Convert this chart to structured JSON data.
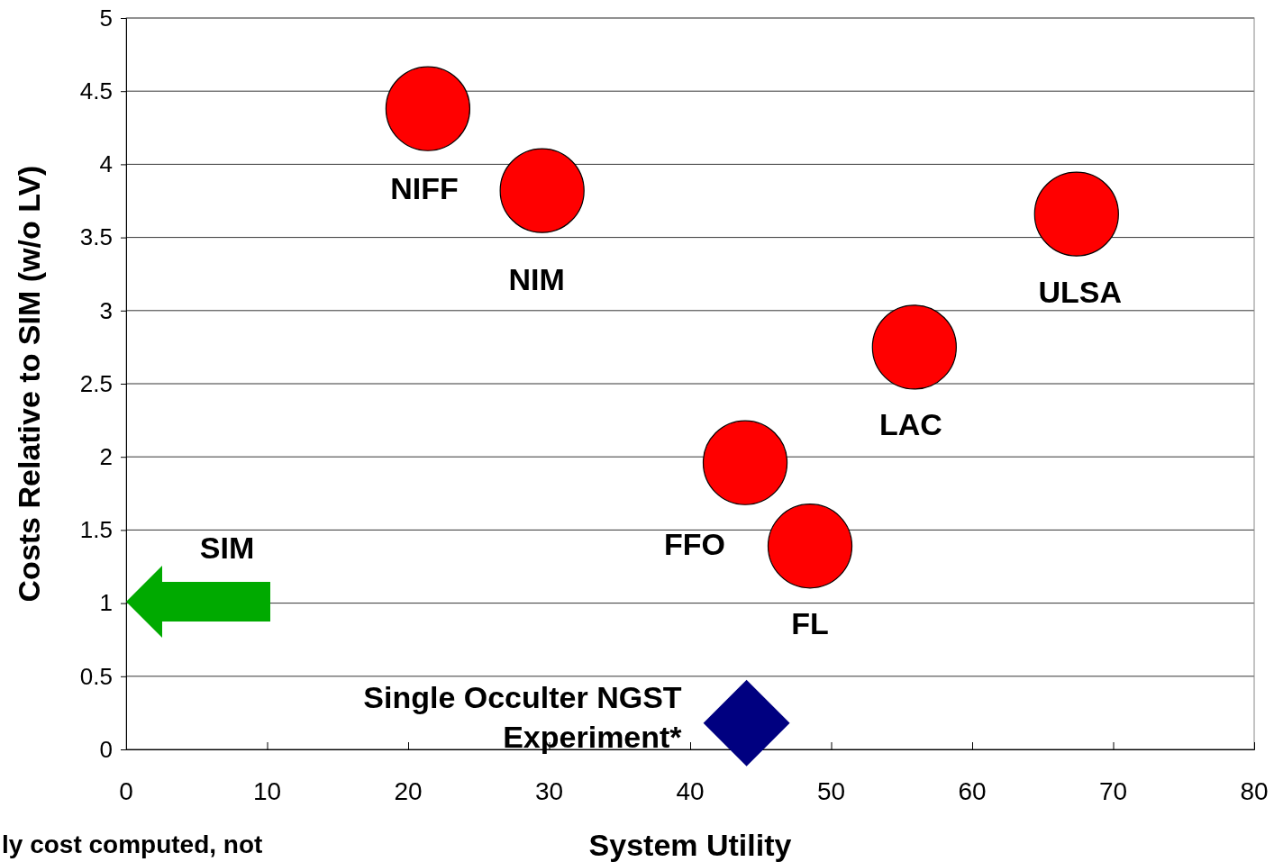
{
  "chart_data": {
    "type": "scatter",
    "xlabel": "System Utility",
    "ylabel": "Costs Relative to SIM (w/o LV)",
    "xlim": [
      0,
      80
    ],
    "xticks": [
      0,
      10,
      20,
      30,
      40,
      50,
      60,
      70,
      80
    ],
    "ylim": [
      0,
      5
    ],
    "yticks": [
      0,
      0.5,
      1,
      1.5,
      2,
      2.5,
      3,
      3.5,
      4,
      4.5,
      5
    ],
    "grid": "y",
    "series": [
      {
        "name": "NIFF",
        "color": "#ff0000",
        "marker": "circle",
        "x": [
          21.4
        ],
        "values": [
          4.38
        ]
      },
      {
        "name": "NIM",
        "color": "#ff0000",
        "marker": "circle",
        "x": [
          29.5
        ],
        "values": [
          3.82
        ]
      },
      {
        "name": "ULSA",
        "color": "#ff0000",
        "marker": "circle",
        "x": [
          67.4
        ],
        "values": [
          3.66
        ]
      },
      {
        "name": "LAC",
        "color": "#ff0000",
        "marker": "circle",
        "x": [
          55.9
        ],
        "values": [
          2.75
        ]
      },
      {
        "name": "FFO",
        "color": "#ff0000",
        "marker": "circle",
        "x": [
          43.9
        ],
        "values": [
          1.96
        ]
      },
      {
        "name": "FL",
        "color": "#ff0000",
        "marker": "circle",
        "x": [
          48.5
        ],
        "values": [
          1.39
        ]
      },
      {
        "name": "Single Occulter NGST Experiment*",
        "color": "#000080",
        "marker": "diamond",
        "x": [
          44
        ],
        "values": [
          0.18
        ]
      }
    ],
    "annotations": [
      "SIM",
      "ly cost computed, not"
    ]
  }
}
